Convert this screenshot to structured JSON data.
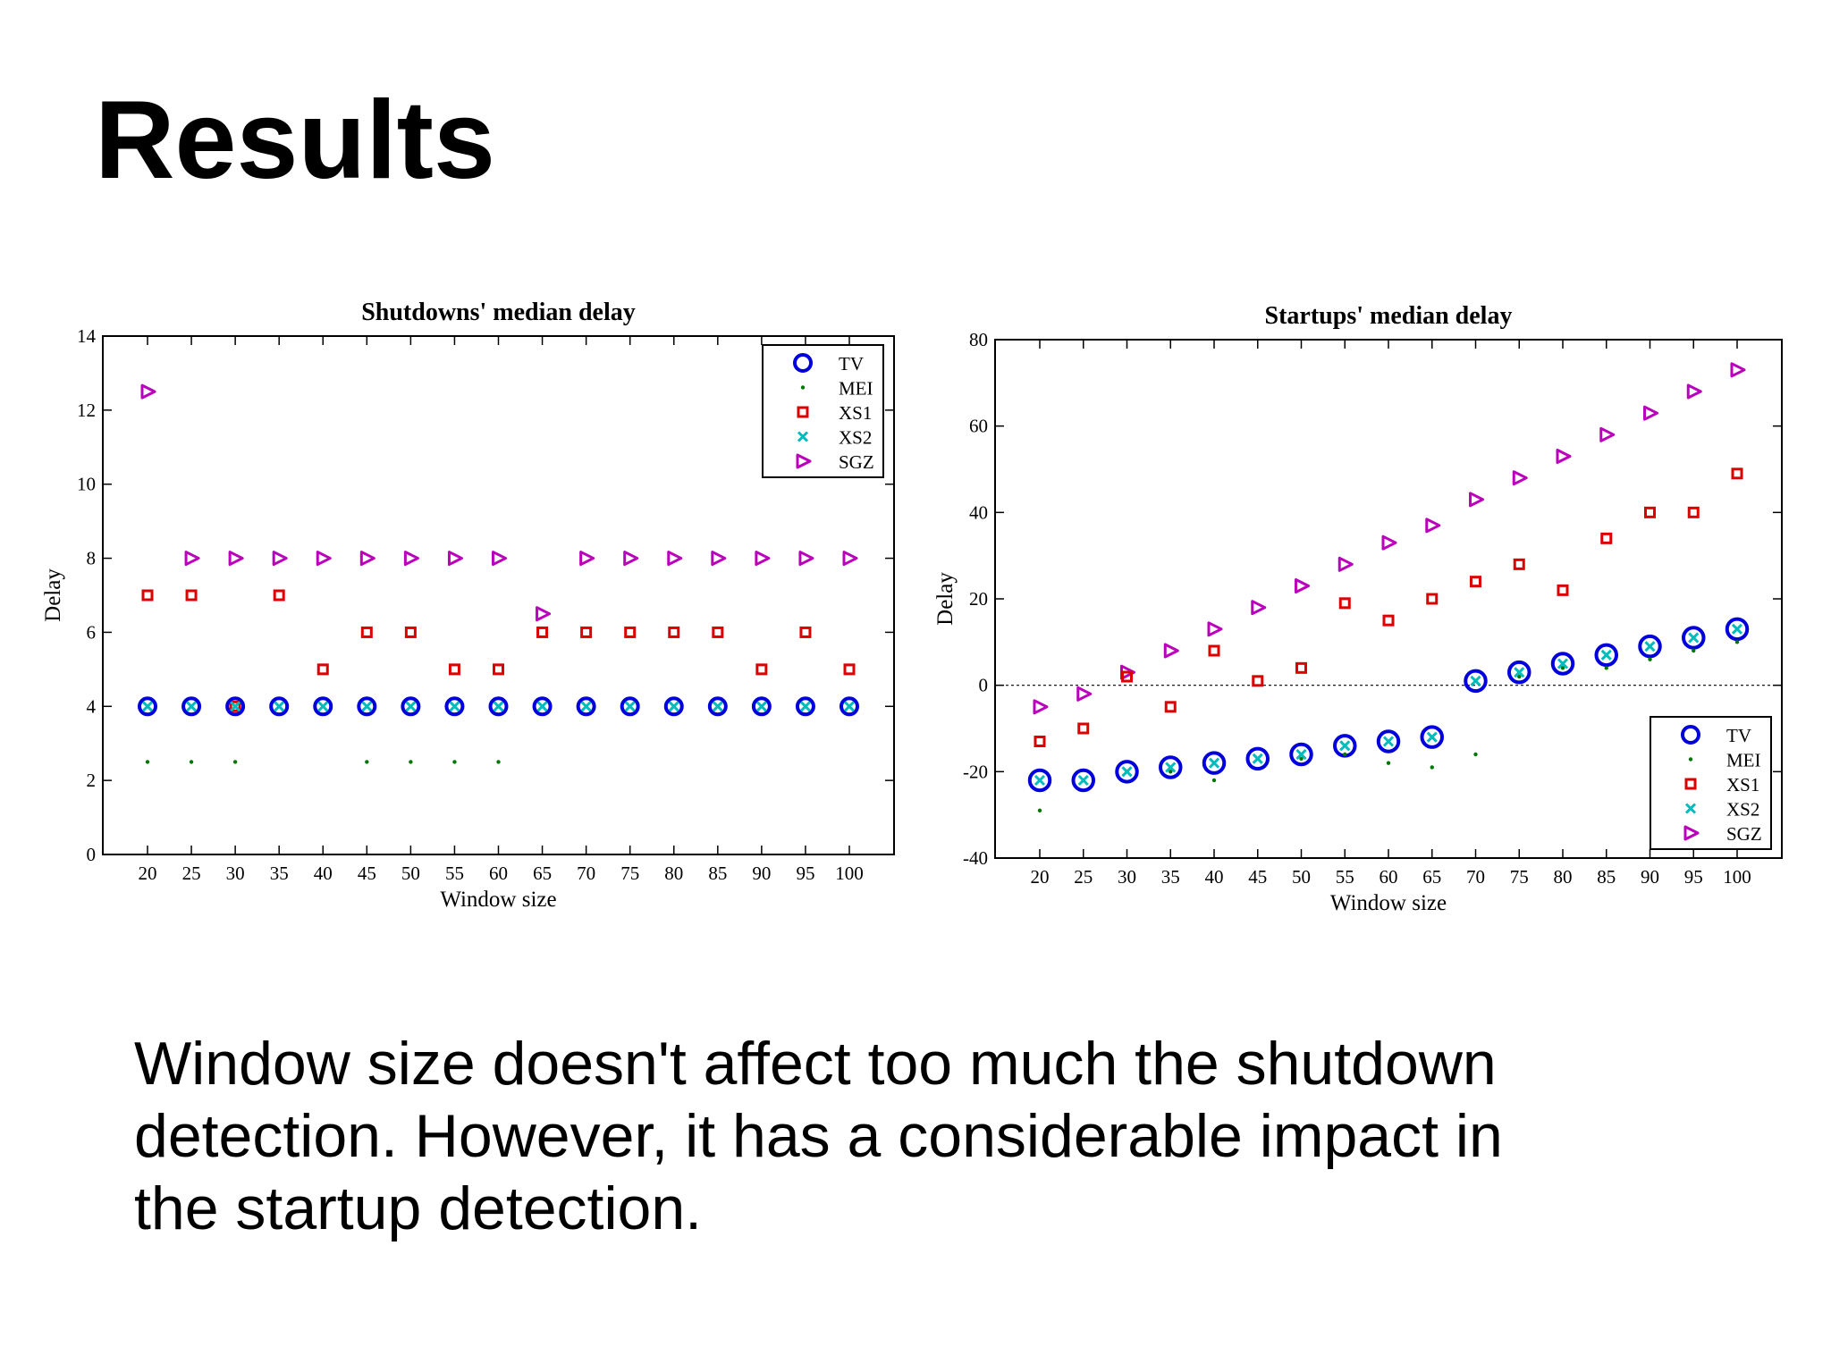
{
  "slide": {
    "title": "Results",
    "body_lines": [
      "Window size doesn't affect too much the shutdown",
      "detection. However, it has a considerable impact in",
      "the startup detection."
    ]
  },
  "series_styles": {
    "TV": {
      "marker": "circle",
      "color": "#0000dd"
    },
    "MEI": {
      "marker": "dot",
      "color": "#007700"
    },
    "XS1": {
      "marker": "square",
      "color": "#dd0000"
    },
    "XS2": {
      "marker": "x",
      "color": "#00bbbb"
    },
    "SGZ": {
      "marker": "triangle",
      "color": "#bb00bb"
    }
  },
  "chart_data": [
    {
      "type": "scatter",
      "title": "Shutdowns' median delay",
      "xlabel": "Window size",
      "ylabel": "Delay",
      "categories": [
        20,
        25,
        30,
        35,
        40,
        45,
        50,
        55,
        60,
        65,
        70,
        75,
        80,
        85,
        90,
        95,
        100
      ],
      "ylim": [
        0,
        14
      ],
      "yticks": [
        0,
        2,
        4,
        6,
        8,
        10,
        12,
        14
      ],
      "legend_position": "top-right",
      "zero_line": false,
      "series": [
        {
          "name": "TV",
          "values": [
            4,
            4,
            4,
            4,
            4,
            4,
            4,
            4,
            4,
            4,
            4,
            4,
            4,
            4,
            4,
            4,
            4
          ]
        },
        {
          "name": "MEI",
          "values": [
            2.5,
            2.5,
            2.5,
            null,
            null,
            2.5,
            2.5,
            2.5,
            2.5,
            null,
            null,
            null,
            null,
            null,
            null,
            null,
            null
          ]
        },
        {
          "name": "XS1",
          "values": [
            7,
            7,
            4,
            7,
            5,
            6,
            6,
            5,
            5,
            6,
            6,
            6,
            6,
            6,
            5,
            6,
            5
          ]
        },
        {
          "name": "XS2",
          "values": [
            4,
            4,
            4,
            4,
            4,
            4,
            4,
            4,
            4,
            4,
            4,
            4,
            4,
            4,
            4,
            4,
            4
          ]
        },
        {
          "name": "SGZ",
          "values": [
            12.5,
            8,
            8,
            8,
            8,
            8,
            8,
            8,
            8,
            6.5,
            8,
            8,
            8,
            8,
            8,
            8,
            8
          ]
        }
      ]
    },
    {
      "type": "scatter",
      "title": "Startups' median delay",
      "xlabel": "Window size",
      "ylabel": "Delay",
      "categories": [
        20,
        25,
        30,
        35,
        40,
        45,
        50,
        55,
        60,
        65,
        70,
        75,
        80,
        85,
        90,
        95,
        100
      ],
      "ylim": [
        -40,
        80
      ],
      "yticks": [
        -40,
        -20,
        0,
        20,
        40,
        60,
        80
      ],
      "legend_position": "bottom-right",
      "zero_line": true,
      "series": [
        {
          "name": "TV",
          "values": [
            -22,
            -22,
            -20,
            -19,
            -18,
            -17,
            -16,
            -14,
            -13,
            -12,
            1,
            3,
            5,
            7,
            9,
            11,
            13
          ]
        },
        {
          "name": "MEI",
          "values": [
            -29,
            -22,
            -20,
            -20,
            -22,
            -17,
            -17,
            -16,
            -18,
            -19,
            -16,
            2,
            4,
            4,
            6,
            8,
            10
          ]
        },
        {
          "name": "XS1",
          "values": [
            -13,
            -10,
            2,
            -5,
            8,
            1,
            4,
            19,
            15,
            20,
            24,
            28,
            22,
            34,
            40,
            40,
            49
          ]
        },
        {
          "name": "XS2",
          "values": [
            -22,
            -22,
            -20,
            -19,
            -18,
            -17,
            -16,
            -14,
            -13,
            -12,
            1,
            3,
            5,
            7,
            9,
            11,
            13
          ]
        },
        {
          "name": "SGZ",
          "values": [
            -5,
            -2,
            3,
            8,
            13,
            18,
            23,
            28,
            33,
            37,
            43,
            48,
            53,
            58,
            63,
            68,
            73
          ]
        }
      ]
    }
  ]
}
